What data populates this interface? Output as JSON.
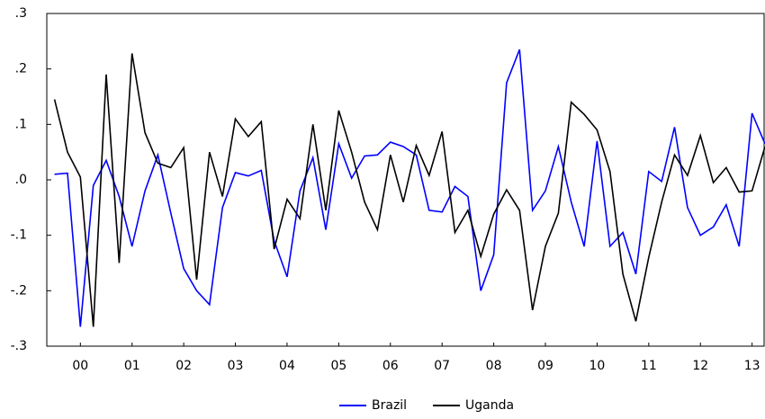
{
  "chart_data": {
    "type": "line",
    "x": [
      2000,
      2000.25,
      2000.5,
      2000.75,
      2001,
      2001.25,
      2001.5,
      2001.75,
      2002,
      2002.25,
      2002.5,
      2002.75,
      2003,
      2003.25,
      2003.5,
      2003.75,
      2004,
      2004.25,
      2004.5,
      2004.75,
      2005,
      2005.25,
      2005.5,
      2005.75,
      2006,
      2006.25,
      2006.5,
      2006.75,
      2007,
      2007.25,
      2007.5,
      2007.75,
      2008,
      2008.25,
      2008.5,
      2008.75,
      2009,
      2009.25,
      2009.5,
      2009.75,
      2010,
      2010.25,
      2010.5,
      2010.75,
      2011,
      2011.25,
      2011.5,
      2011.75,
      2012,
      2012.25,
      2012.5,
      2012.75,
      2013,
      2013.25,
      2013.5,
      2013.75
    ],
    "series": [
      {
        "name": "Brazil",
        "color": "#0000ff",
        "values": [
          0.01,
          0.012,
          -0.265,
          -0.01,
          0.035,
          -0.03,
          -0.12,
          -0.02,
          0.045,
          -0.06,
          -0.16,
          -0.2,
          -0.225,
          -0.05,
          0.013,
          0.007,
          0.017,
          -0.11,
          -0.175,
          -0.02,
          0.04,
          -0.09,
          0.065,
          0.003,
          0.043,
          0.045,
          0.068,
          0.06,
          0.045,
          -0.055,
          -0.058,
          -0.012,
          -0.03,
          -0.2,
          -0.135,
          0.175,
          0.235,
          -0.055,
          -0.02,
          0.06,
          -0.04,
          -0.12,
          0.07,
          -0.12,
          -0.095,
          -0.17,
          0.015,
          -0.003,
          0.095,
          -0.05,
          -0.1,
          -0.085,
          -0.045,
          -0.12,
          0.12,
          0.065
        ]
      },
      {
        "name": "Uganda",
        "color": "#000000",
        "values": [
          0.145,
          0.05,
          0.005,
          -0.265,
          0.19,
          -0.15,
          0.228,
          0.085,
          0.03,
          0.022,
          0.058,
          -0.18,
          0.05,
          -0.03,
          0.11,
          0.078,
          0.105,
          -0.125,
          -0.035,
          -0.07,
          0.1,
          -0.055,
          0.125,
          0.05,
          -0.04,
          -0.09,
          0.045,
          -0.04,
          0.062,
          0.008,
          0.087,
          -0.095,
          -0.055,
          -0.138,
          -0.062,
          -0.018,
          -0.055,
          -0.235,
          -0.12,
          -0.06,
          0.14,
          0.118,
          0.09,
          0.015,
          -0.17,
          -0.255,
          -0.14,
          -0.04,
          0.045,
          0.008,
          0.08,
          -0.005,
          0.022,
          -0.022,
          -0.02,
          0.06
        ]
      }
    ],
    "xlim": [
      1999.85,
      2013.75
    ],
    "xticks": [
      {
        "value": 2000.5,
        "label": "00"
      },
      {
        "value": 2001.5,
        "label": "01"
      },
      {
        "value": 2002.5,
        "label": "02"
      },
      {
        "value": 2003.5,
        "label": "03"
      },
      {
        "value": 2004.5,
        "label": "04"
      },
      {
        "value": 2005.5,
        "label": "05"
      },
      {
        "value": 2006.5,
        "label": "06"
      },
      {
        "value": 2007.5,
        "label": "07"
      },
      {
        "value": 2008.5,
        "label": "08"
      },
      {
        "value": 2009.5,
        "label": "09"
      },
      {
        "value": 2010.5,
        "label": "10"
      },
      {
        "value": 2011.5,
        "label": "11"
      },
      {
        "value": 2012.5,
        "label": "12"
      },
      {
        "value": 2013.5,
        "label": "13"
      }
    ],
    "ylim": [
      -0.3,
      0.3
    ],
    "yticks": [
      {
        "value": -0.3,
        "label": "-.3"
      },
      {
        "value": -0.2,
        "label": "-.2"
      },
      {
        "value": -0.1,
        "label": "-.1"
      },
      {
        "value": 0,
        "label": ".0"
      },
      {
        "value": 0.1,
        "label": ".1"
      },
      {
        "value": 0.2,
        "label": ".2"
      },
      {
        "value": 0.3,
        "label": ".3"
      }
    ],
    "legend": "bottom"
  }
}
